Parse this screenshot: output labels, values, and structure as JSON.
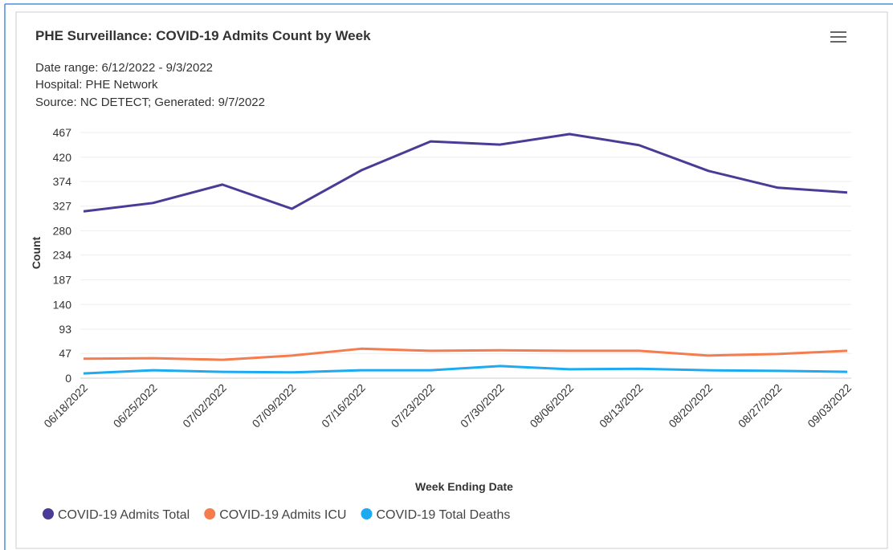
{
  "chart_data": {
    "type": "line",
    "title": "PHE Surveillance: COVID-19 Admits Count by Week",
    "subtitle": [
      "Date range: 6/12/2022 - 9/3/2022",
      "Hospital: PHE Network",
      "Source: NC DETECT; Generated: 9/7/2022"
    ],
    "x_label": "Week Ending Date",
    "y_label": "Count",
    "categories": [
      "06/18/2022",
      "06/25/2022",
      "07/02/2022",
      "07/09/2022",
      "07/16/2022",
      "07/23/2022",
      "07/30/2022",
      "08/06/2022",
      "08/13/2022",
      "08/20/2022",
      "08/27/2022",
      "09/03/2022"
    ],
    "series": [
      {
        "name": "COVID-19 Admits Total",
        "color": "#4b3a96",
        "values": [
          317,
          333,
          368,
          322,
          395,
          450,
          444,
          464,
          443,
          394,
          362,
          353
        ]
      },
      {
        "name": "COVID-19 Admits ICU",
        "color": "#f47c4e",
        "values": [
          37,
          38,
          35,
          43,
          56,
          52,
          53,
          52,
          52,
          43,
          46,
          52
        ]
      },
      {
        "name": "COVID-19 Total Deaths",
        "color": "#1eaaf1",
        "values": [
          9,
          15,
          12,
          11,
          15,
          15,
          23,
          17,
          18,
          15,
          14,
          12
        ]
      }
    ],
    "ylim": [
      0,
      467
    ],
    "yticks": [
      0,
      47,
      93,
      140,
      187,
      234,
      280,
      327,
      374,
      420,
      467
    ],
    "grid": true
  }
}
